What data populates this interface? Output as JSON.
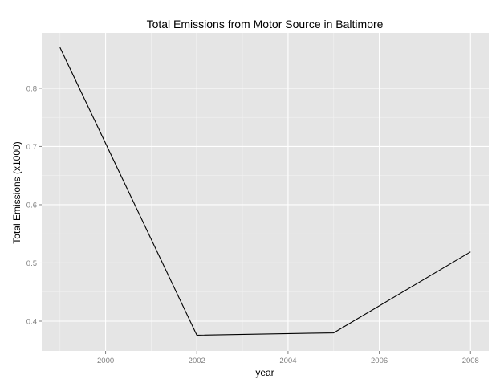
{
  "chart_data": {
    "type": "line",
    "title": "Total Emissions from Motor Source in Baltimore",
    "xlabel": "year",
    "ylabel": "Total Emissions (x1000)",
    "x": [
      1999,
      2002,
      2005,
      2008
    ],
    "y": [
      0.87,
      0.376,
      0.38,
      0.519
    ],
    "xlim": [
      1998.6,
      2008.4
    ],
    "ylim": [
      0.349,
      0.895
    ],
    "xticks": [
      2000,
      2002,
      2004,
      2006,
      2008
    ],
    "xtick_labels": [
      "2000",
      "2002",
      "2004",
      "2006",
      "2008"
    ],
    "yticks": [
      0.4,
      0.5,
      0.6,
      0.7,
      0.8
    ],
    "ytick_labels": [
      "0.4",
      "0.5",
      "0.6",
      "0.7",
      "0.8"
    ],
    "grid": true,
    "colors": {
      "panel_background": "#e5e5e5",
      "grid_major": "#ffffff",
      "grid_minor": "#f2f2f2",
      "line": "#000000",
      "tick_text": "#7f7f7f"
    }
  }
}
